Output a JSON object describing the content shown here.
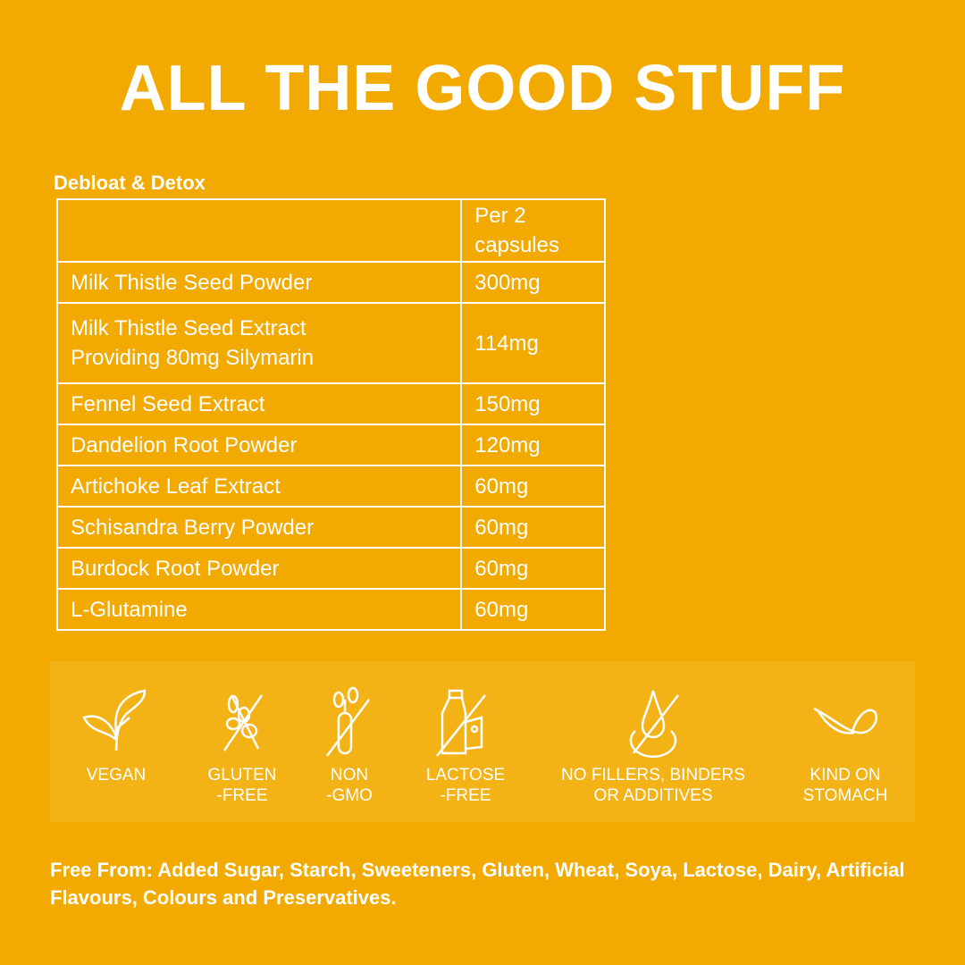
{
  "title": "ALL THE GOOD STUFF",
  "product": "Debloat & Detox",
  "table": {
    "header": [
      "",
      "Per 2 capsules"
    ],
    "rows": [
      [
        "Milk Thistle Seed Powder",
        "300mg"
      ],
      [
        "Milk Thistle Seed Extract Providing 80mg Silymarin",
        "114mg"
      ],
      [
        "Fennel Seed Extract",
        "150mg"
      ],
      [
        "Dandelion Root Powder",
        "120mg"
      ],
      [
        "Artichoke Leaf Extract",
        "60mg"
      ],
      [
        "Schisandra Berry Powder",
        "60mg"
      ],
      [
        "Burdock Root Powder",
        "60mg"
      ],
      [
        "L-Glutamine",
        "60mg"
      ]
    ]
  },
  "badges": [
    {
      "icon": "leaf-icon",
      "l1": "VEGAN",
      "l2": ""
    },
    {
      "icon": "wheat-crossed-icon",
      "l1": "GLUTEN",
      "l2": "-FREE"
    },
    {
      "icon": "test-tube-plant-crossed-icon",
      "l1": "NON",
      "l2": "-GMO"
    },
    {
      "icon": "milk-cheese-crossed-icon",
      "l1": "LACTOSE",
      "l2": "-FREE"
    },
    {
      "icon": "drop-crossed-icon",
      "l1": "NO FILLERS, BINDERS",
      "l2": "OR ADDITIVES"
    },
    {
      "icon": "feather-icon",
      "l1": "KIND ON",
      "l2": "STOMACH"
    }
  ],
  "footer": "Free From: Added Sugar, Starch, Sweeteners, Gluten, Wheat, Soya, Lactose, Dairy, Artificial Flavours, Colours and Preservatives.",
  "colors": {
    "background": "#F2AA00",
    "panel": "#F3B316",
    "text": "#FFFFFF"
  }
}
